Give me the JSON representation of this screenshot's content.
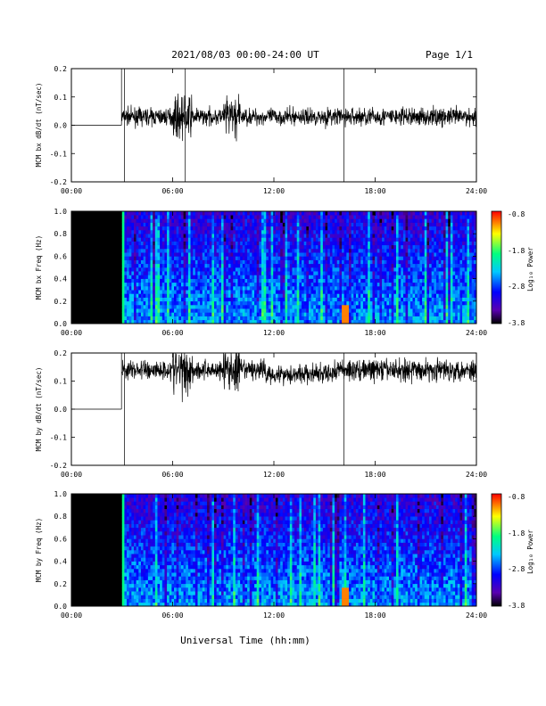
{
  "header": {
    "title": "2021/08/03  00:00-24:00 UT",
    "page": "Page 1/1"
  },
  "xaxis": {
    "label": "Universal Time (hh:mm)",
    "ticks": [
      "00:00",
      "06:00",
      "12:00",
      "18:00",
      "24:00"
    ],
    "range_hours": [
      0,
      24
    ]
  },
  "colorbar": {
    "label": "Log₁₀ Power",
    "ticks": [
      "-0.8",
      "-1.8",
      "-2.8",
      "-3.8"
    ],
    "range": [
      -3.8,
      -0.8
    ],
    "colors": [
      "#000000",
      "#5a00b0",
      "#0000ff",
      "#00c8ff",
      "#00ff80",
      "#ffff00",
      "#ff0000"
    ]
  },
  "chart_data": [
    {
      "type": "line",
      "ylabel": "MCM bx dB/dt (nT/sec)",
      "ylim": [
        -0.2,
        0.2
      ],
      "yticks": [
        "0.2",
        "0.1",
        "0.0",
        "-0.1",
        "-0.2"
      ],
      "series": [
        {
          "values_note_hours": [
            0,
            3.0
          ],
          "flat_value": 0.0,
          "baseline_after_3h": 0.03
        }
      ],
      "segments": [
        {
          "x": [
            0,
            2.97
          ],
          "y": [
            0.0,
            0.0
          ]
        },
        {
          "x": [
            2.97,
            2.97
          ],
          "y": [
            0.0,
            0.2
          ]
        }
      ],
      "spikes_hours": [
        3.15,
        6.75,
        16.15
      ],
      "data_start_hours": 3.0,
      "baseline": 0.03,
      "amplitude": 0.025
    },
    {
      "type": "heatmap",
      "ylabel": "MCM bx Freq (Hz)",
      "ylim": [
        0.0,
        1.0
      ],
      "yticks": [
        "1.0",
        "0.8",
        "0.6",
        "0.4",
        "0.2",
        "0.0"
      ],
      "data_start_hours": 3.0
    },
    {
      "type": "line",
      "ylabel": "MCM by dB/dt (nT/sec)",
      "ylim": [
        -0.2,
        0.2
      ],
      "yticks": [
        "0.2",
        "0.1",
        "0.0",
        "-0.1",
        "-0.2"
      ],
      "segments": [
        {
          "x": [
            0,
            2.97
          ],
          "y": [
            0.0,
            0.0
          ]
        },
        {
          "x": [
            2.97,
            2.97
          ],
          "y": [
            0.0,
            0.2
          ]
        }
      ],
      "spikes_hours": [
        3.15,
        16.15
      ],
      "data_start_hours": 3.0,
      "baseline": 0.14,
      "amplitude": 0.03
    },
    {
      "type": "heatmap",
      "ylabel": "MCM by Freq (Hz)",
      "ylim": [
        0.0,
        1.0
      ],
      "yticks": [
        "1.0",
        "0.8",
        "0.6",
        "0.4",
        "0.2",
        "0.0"
      ],
      "data_start_hours": 3.0
    }
  ]
}
